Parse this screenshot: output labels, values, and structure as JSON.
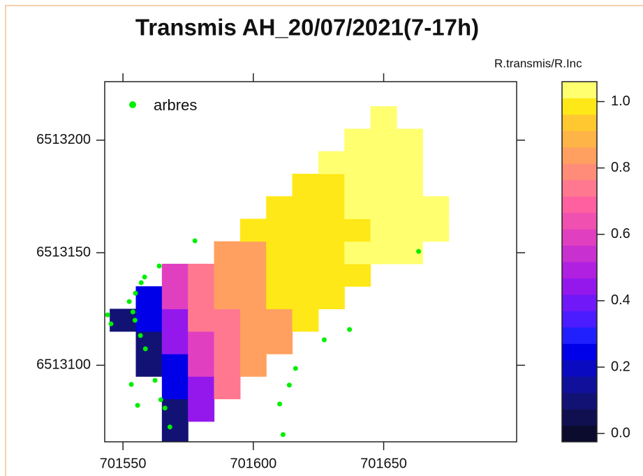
{
  "chart_data": {
    "type": "heatmap",
    "title": "Transmis AH_20/07/2021(7-17h)",
    "xlim": [
      701543,
      701701
    ],
    "ylim": [
      6513066,
      6513226
    ],
    "xticks": [
      701550,
      701600,
      701650
    ],
    "yticks": [
      6513100,
      6513150,
      6513200
    ],
    "grid": false,
    "legend": "top-left",
    "heatmap": {
      "x": [
        701550,
        701560,
        701570,
        701580,
        701590,
        701600,
        701610,
        701620,
        701630,
        701640,
        701650,
        701660,
        701670,
        701680,
        701690
      ],
      "y": [
        6513070,
        6513080,
        6513090,
        6513100,
        6513110,
        6513120,
        6513130,
        6513140,
        6513150,
        6513160,
        6513170,
        6513180,
        6513190,
        6513200,
        6513210
      ],
      "z": [
        [
          null,
          null,
          0.1,
          null,
          null,
          null,
          null,
          null,
          null,
          null,
          null,
          null,
          null,
          null,
          null
        ],
        [
          null,
          null,
          0.1,
          0.45,
          null,
          null,
          null,
          null,
          null,
          null,
          null,
          null,
          null,
          null,
          null
        ],
        [
          null,
          null,
          0.25,
          0.45,
          0.75,
          null,
          null,
          null,
          null,
          null,
          null,
          null,
          null,
          null,
          null
        ],
        [
          null,
          0.1,
          0.25,
          0.6,
          0.75,
          0.85,
          null,
          null,
          null,
          null,
          null,
          null,
          null,
          null,
          null
        ],
        [
          null,
          0.1,
          0.45,
          0.6,
          0.75,
          0.85,
          0.85,
          null,
          null,
          null,
          null,
          null,
          null,
          null,
          null
        ],
        [
          0.1,
          0.25,
          0.45,
          0.75,
          0.75,
          0.85,
          0.85,
          0.97,
          null,
          null,
          null,
          null,
          null,
          null,
          null
        ],
        [
          null,
          0.25,
          0.6,
          0.75,
          0.85,
          0.85,
          0.97,
          0.97,
          0.97,
          null,
          null,
          null,
          null,
          null,
          null
        ],
        [
          null,
          null,
          0.6,
          0.75,
          0.85,
          0.85,
          0.97,
          0.97,
          0.97,
          0.97,
          null,
          null,
          null,
          null,
          null
        ],
        [
          null,
          null,
          null,
          null,
          0.85,
          0.85,
          0.97,
          0.97,
          0.97,
          1.03,
          1.03,
          1.03,
          null,
          null,
          null
        ],
        [
          null,
          null,
          null,
          null,
          null,
          0.97,
          0.97,
          0.97,
          0.97,
          0.97,
          1.03,
          1.03,
          1.03,
          null,
          null
        ],
        [
          null,
          null,
          null,
          null,
          null,
          null,
          0.97,
          0.97,
          0.97,
          1.03,
          1.03,
          1.03,
          1.03,
          null,
          null
        ],
        [
          null,
          null,
          null,
          null,
          null,
          null,
          null,
          0.97,
          0.97,
          1.03,
          1.03,
          1.03,
          null,
          null,
          null
        ],
        [
          null,
          null,
          null,
          null,
          null,
          null,
          null,
          null,
          1.03,
          1.03,
          1.03,
          1.03,
          null,
          null,
          null
        ],
        [
          null,
          null,
          null,
          null,
          null,
          null,
          null,
          null,
          null,
          1.03,
          1.03,
          1.03,
          null,
          null,
          null
        ],
        [
          null,
          null,
          null,
          null,
          null,
          null,
          null,
          null,
          null,
          null,
          1.03,
          null,
          null,
          null,
          null
        ]
      ]
    },
    "series": [
      {
        "name": "arbres",
        "color": "#00ee00",
        "x": [
          701544.1,
          701545.4,
          701577.6,
          701563.9,
          701558.3,
          701557.0,
          701554.8,
          701552.4,
          701553.8,
          701554.6,
          701556.7,
          701558.6,
          701553.2,
          701555.6,
          701562.3,
          701564.5,
          701566.1,
          701568.0,
          701610.1,
          701613.8,
          701616.2,
          701611.4,
          701627.2,
          701636.9,
          701663.4
        ],
        "y": [
          6513122.4,
          6513118.4,
          6513155.3,
          6513144.1,
          6513139.2,
          6513136.7,
          6513132.0,
          6513128.3,
          6513123.7,
          6513120.0,
          6513113.2,
          6513107.3,
          6513091.5,
          6513082.2,
          6513093.3,
          6513084.7,
          6513081.0,
          6513072.6,
          6513082.8,
          6513091.2,
          6513098.6,
          6513069.2,
          6513111.3,
          6513115.9,
          6513150.6
        ]
      }
    ],
    "colorbar": {
      "title": "R.transmis/R.Inc",
      "lim": [
        -0.025,
        1.06
      ],
      "ticks": [
        {
          "value": 0,
          "label": "0.0"
        },
        0.2,
        0.4,
        0.6,
        0.8,
        {
          "value": 1,
          "label": "1.0"
        }
      ],
      "colors": [
        "#0b0b2e",
        "#101050",
        "#121275",
        "#10109a",
        "#0a0ac0",
        "#0000e8",
        "#2020ff",
        "#4a1cff",
        "#7018f8",
        "#9418ec",
        "#b020e0",
        "#c830d0",
        "#e040c0",
        "#f050b0",
        "#ff60a0",
        "#ff7890",
        "#ff8c78",
        "#ffa060",
        "#ffb448",
        "#ffc830",
        "#ffe818",
        "#ffff70"
      ]
    }
  }
}
